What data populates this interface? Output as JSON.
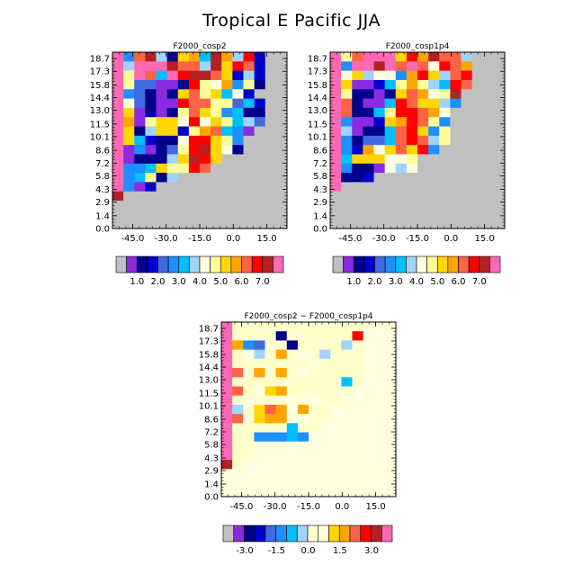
{
  "title": "Tropical E Pacific JJA",
  "chart_data": [
    {
      "type": "heatmap",
      "title": "F2000_cosp2",
      "x_ticks": [
        "-45.0",
        "-30.0",
        "-15.0",
        "0.0",
        "15.0"
      ],
      "y_ticks": [
        "0.0",
        "1.4",
        "2.9",
        "4.3",
        "5.8",
        "7.2",
        "8.6",
        "10.1",
        "11.5",
        "13.0",
        "14.4",
        "15.8",
        "17.3",
        "18.7"
      ],
      "xlim": [
        -54,
        24
      ],
      "ylim": [
        0,
        19.4
      ],
      "colorbar_labels": [
        "1.0",
        "2.0",
        "3.0",
        "4.0",
        "5.0",
        "6.0",
        "7.0"
      ],
      "grid": [
        [
          15,
          5,
          12,
          14,
          7,
          2,
          10,
          11,
          6,
          14,
          11,
          7,
          13,
          3,
          0,
          0
        ],
        [
          15,
          7,
          15,
          15,
          15,
          14,
          12,
          12,
          7,
          14,
          10,
          13,
          12,
          3,
          0,
          0
        ],
        [
          15,
          9,
          15,
          12,
          6,
          15,
          13,
          14,
          14,
          12,
          10,
          3,
          7,
          3,
          0,
          0
        ],
        [
          15,
          9,
          4,
          4,
          1,
          1,
          2,
          13,
          9,
          8,
          11,
          5,
          9,
          2,
          0,
          0
        ],
        [
          15,
          5,
          4,
          2,
          1,
          2,
          10,
          12,
          9,
          10,
          6,
          8,
          3,
          0,
          0,
          0
        ],
        [
          15,
          8,
          4,
          2,
          1,
          1,
          13,
          12,
          12,
          9,
          9,
          4,
          6,
          3,
          0,
          0
        ],
        [
          15,
          10,
          1,
          2,
          1,
          2,
          9,
          12,
          10,
          9,
          5,
          6,
          2,
          2,
          0,
          0
        ],
        [
          15,
          11,
          1,
          9,
          10,
          10,
          8,
          13,
          8,
          10,
          9,
          6,
          7,
          4,
          0,
          0
        ],
        [
          15,
          10,
          2,
          7,
          10,
          10,
          3,
          9,
          11,
          12,
          6,
          5,
          1,
          0,
          0,
          0
        ],
        [
          15,
          10,
          6,
          3,
          2,
          2,
          8,
          13,
          13,
          10,
          9,
          5,
          0,
          0,
          0,
          0
        ],
        [
          15,
          1,
          5,
          1,
          2,
          4,
          9,
          13,
          14,
          10,
          8,
          2,
          0,
          0,
          0,
          0
        ],
        [
          15,
          1,
          2,
          2,
          2,
          7,
          10,
          14,
          13,
          10,
          0,
          0,
          0,
          0,
          0,
          0
        ],
        [
          15,
          5,
          5,
          6,
          10,
          9,
          9,
          13,
          12,
          0,
          0,
          0,
          0,
          0,
          0,
          0
        ],
        [
          15,
          5,
          6,
          9,
          2,
          7,
          0,
          0,
          0,
          0,
          0,
          0,
          0,
          0,
          0,
          0
        ],
        [
          15,
          5,
          1,
          3,
          0,
          0,
          0,
          0,
          0,
          0,
          0,
          0,
          0,
          0,
          0,
          0
        ],
        [
          14,
          0,
          0,
          0,
          0,
          0,
          0,
          0,
          0,
          0,
          0,
          0,
          0,
          0,
          0,
          0
        ],
        [
          0,
          0,
          0,
          0,
          0,
          0,
          0,
          0,
          0,
          0,
          0,
          0,
          0,
          0,
          0,
          0
        ],
        [
          0,
          0,
          0,
          0,
          0,
          0,
          0,
          0,
          0,
          0,
          0,
          0,
          0,
          0,
          0,
          0
        ],
        [
          0,
          0,
          0,
          0,
          0,
          0,
          0,
          0,
          0,
          0,
          0,
          0,
          0,
          0,
          0,
          0
        ]
      ]
    },
    {
      "type": "heatmap",
      "title": "F2000_cosp1p4",
      "x_ticks": [
        "-45.0",
        "-30.0",
        "-15.0",
        "0.0",
        "15.0"
      ],
      "y_ticks": [
        "0.0",
        "1.4",
        "2.9",
        "4.3",
        "5.8",
        "7.2",
        "8.6",
        "10.1",
        "11.5",
        "13.0",
        "14.4",
        "15.8",
        "17.3",
        "18.7"
      ],
      "xlim": [
        -54,
        24
      ],
      "ylim": [
        0,
        19.4
      ],
      "colorbar_labels": [
        "1.0",
        "2.0",
        "3.0",
        "4.0",
        "5.0",
        "6.0",
        "7.0"
      ],
      "grid": [
        [
          15,
          9,
          12,
          15,
          15,
          15,
          10,
          13,
          11,
          14,
          12,
          12,
          7,
          0,
          0,
          0
        ],
        [
          15,
          5,
          15,
          15,
          14,
          15,
          12,
          15,
          12,
          8,
          13,
          12,
          11,
          0,
          0,
          0
        ],
        [
          15,
          8,
          10,
          7,
          8,
          8,
          5,
          11,
          13,
          10,
          7,
          12,
          13,
          0,
          0,
          0
        ],
        [
          15,
          10,
          1,
          1,
          3,
          6,
          9,
          11,
          9,
          7,
          6,
          13,
          12,
          0,
          0,
          0
        ],
        [
          15,
          9,
          2,
          2,
          1,
          2,
          10,
          12,
          11,
          8,
          9,
          14,
          0,
          0,
          0,
          0
        ],
        [
          15,
          12,
          2,
          1,
          1,
          6,
          13,
          12,
          10,
          10,
          7,
          5,
          0,
          0,
          0,
          0
        ],
        [
          15,
          12,
          2,
          2,
          6,
          9,
          13,
          13,
          12,
          11,
          8,
          0,
          0,
          0,
          0,
          0
        ],
        [
          15,
          5,
          1,
          1,
          3,
          10,
          11,
          13,
          12,
          9,
          5,
          0,
          0,
          0,
          0,
          0
        ],
        [
          15,
          7,
          1,
          2,
          2,
          6,
          12,
          13,
          10,
          5,
          9,
          0,
          0,
          0,
          0,
          0
        ],
        [
          15,
          5,
          2,
          4,
          4,
          6,
          12,
          13,
          12,
          7,
          9,
          0,
          0,
          0,
          0,
          0
        ],
        [
          15,
          5,
          3,
          11,
          8,
          10,
          12,
          10,
          13,
          5,
          0,
          0,
          0,
          0,
          0,
          0
        ],
        [
          15,
          6,
          10,
          10,
          10,
          8,
          8,
          9,
          0,
          0,
          0,
          0,
          0,
          0,
          0,
          0
        ],
        [
          15,
          5,
          2,
          2,
          1,
          8,
          7,
          8,
          0,
          0,
          0,
          0,
          0,
          0,
          0,
          0
        ],
        [
          15,
          2,
          2,
          3,
          0,
          0,
          0,
          0,
          0,
          0,
          0,
          0,
          0,
          0,
          0,
          0
        ],
        [
          15,
          0,
          0,
          0,
          0,
          0,
          0,
          0,
          0,
          0,
          0,
          0,
          0,
          0,
          0,
          0
        ],
        [
          0,
          0,
          0,
          0,
          0,
          0,
          0,
          0,
          0,
          0,
          0,
          0,
          0,
          0,
          0,
          0
        ],
        [
          0,
          0,
          0,
          0,
          0,
          0,
          0,
          0,
          0,
          0,
          0,
          0,
          0,
          0,
          0,
          0
        ],
        [
          0,
          0,
          0,
          0,
          0,
          0,
          0,
          0,
          0,
          0,
          0,
          0,
          0,
          0,
          0,
          0
        ],
        [
          0,
          0,
          0,
          0,
          0,
          0,
          0,
          0,
          0,
          0,
          0,
          0,
          0,
          0,
          0,
          0
        ]
      ]
    },
    {
      "type": "heatmap",
      "title": "F2000_cosp2 − F2000_cosp1p4",
      "x_ticks": [
        "-45.0",
        "-30.0",
        "-15.0",
        "0.0",
        "15.0"
      ],
      "y_ticks": [
        "0.0",
        "1.4",
        "2.9",
        "4.3",
        "5.8",
        "7.2",
        "8.6",
        "10.1",
        "11.5",
        "13.0",
        "14.4",
        "15.8",
        "17.3",
        "18.7"
      ],
      "xlim": [
        -54,
        24
      ],
      "ylim": [
        0,
        19.4
      ],
      "colorbar_labels": [
        "-3.0",
        "-1.5",
        "0.0",
        "1.5",
        "3.0"
      ],
      "grid": [
        [
          15,
          8,
          8,
          8,
          8,
          8,
          8,
          8,
          8,
          8,
          8,
          8,
          8,
          9,
          9,
          9
        ],
        [
          15,
          8,
          8,
          8,
          8,
          2,
          8,
          8,
          8,
          8,
          8,
          8,
          13,
          9,
          9,
          9
        ],
        [
          15,
          11,
          5,
          4,
          8,
          8,
          2,
          8,
          8,
          8,
          8,
          7,
          8,
          9,
          9,
          9
        ],
        [
          15,
          8,
          9,
          7,
          8,
          11,
          8,
          9,
          8,
          7,
          8,
          8,
          8,
          9,
          9,
          9
        ],
        [
          15,
          8,
          8,
          8,
          8,
          8,
          8,
          8,
          9,
          8,
          8,
          8,
          8,
          9,
          9,
          9
        ],
        [
          15,
          12,
          8,
          11,
          8,
          11,
          8,
          9,
          8,
          8,
          8,
          8,
          8,
          9,
          9,
          9
        ],
        [
          15,
          8,
          8,
          8,
          8,
          8,
          8,
          8,
          8,
          8,
          8,
          6,
          8,
          9,
          9,
          9
        ],
        [
          15,
          12,
          8,
          9,
          10,
          11,
          8,
          8,
          8,
          8,
          8,
          8,
          9,
          9,
          9,
          9
        ],
        [
          15,
          8,
          9,
          8,
          8,
          8,
          9,
          8,
          9,
          8,
          8,
          9,
          9,
          9,
          9,
          9
        ],
        [
          15,
          7,
          8,
          10,
          12,
          11,
          9,
          11,
          8,
          8,
          9,
          9,
          9,
          9,
          9,
          9
        ],
        [
          15,
          12,
          8,
          10,
          11,
          11,
          9,
          9,
          8,
          8,
          9,
          9,
          9,
          9,
          9,
          9
        ],
        [
          15,
          8,
          8,
          8,
          8,
          8,
          6,
          8,
          8,
          9,
          9,
          9,
          9,
          9,
          9,
          9
        ],
        [
          15,
          8,
          8,
          5,
          5,
          5,
          6,
          5,
          9,
          9,
          9,
          9,
          9,
          9,
          9,
          9
        ],
        [
          15,
          8,
          8,
          9,
          9,
          9,
          9,
          9,
          9,
          9,
          9,
          9,
          9,
          9,
          9,
          9
        ],
        [
          15,
          8,
          8,
          9,
          9,
          9,
          9,
          9,
          9,
          9,
          9,
          9,
          9,
          9,
          9,
          9
        ],
        [
          14,
          8,
          9,
          9,
          9,
          9,
          9,
          9,
          9,
          9,
          9,
          9,
          9,
          9,
          9,
          9
        ],
        [
          9,
          9,
          9,
          9,
          9,
          9,
          9,
          9,
          9,
          9,
          9,
          9,
          9,
          9,
          9,
          9
        ],
        [
          9,
          9,
          9,
          9,
          9,
          9,
          9,
          9,
          9,
          9,
          9,
          9,
          9,
          9,
          9,
          9
        ],
        [
          9,
          9,
          9,
          9,
          9,
          9,
          9,
          9,
          9,
          9,
          9,
          9,
          9,
          9,
          9,
          9
        ]
      ]
    }
  ],
  "colors": {
    "missing": "#c0c0c0",
    "palette": [
      "#c0c0c0",
      "#8a2be2",
      "#00008b",
      "#0000cd",
      "#4169e1",
      "#1e90ff",
      "#00bfff",
      "#a0d4ff",
      "#ffffe0",
      "#ffff99",
      "#ffd700",
      "#ffa500",
      "#ff6347",
      "#ff0000",
      "#b22222",
      "#ff69b4"
    ],
    "diff_palette": [
      "#c0c0c0",
      "#8a2be2",
      "#00008b",
      "#0000cd",
      "#4169e1",
      "#1e90ff",
      "#00bfff",
      "#a0d4ff",
      "#ffffcc",
      "#ffffe0",
      "#ffd700",
      "#ffa500",
      "#ff6347",
      "#ff0000",
      "#b22222",
      "#ff69b4"
    ]
  }
}
